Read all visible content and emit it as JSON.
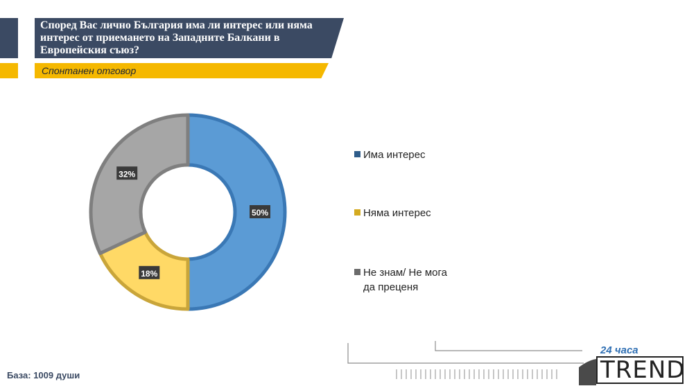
{
  "header": {
    "title": "Според Вас лично България има ли интерес или няма интерес от приемането на Западните Балкани в Европейския съюз?",
    "subtitle": "Спонтанен отговор"
  },
  "chart_data": {
    "type": "pie",
    "title": "Според Вас лично България има ли интерес или няма интерес от приемането на Западните Балкани в Европейския съюз?",
    "subtitle": "Спонтанен отговор",
    "style": "donut",
    "categories": [
      "Има интерес",
      "Няма интерес",
      "Не знам/ Не мога да преценя"
    ],
    "values": [
      50,
      18,
      32
    ],
    "labels": [
      "50%",
      "18%",
      "32%"
    ],
    "colors": [
      "#5b9bd5",
      "#ffd966",
      "#a6a6a6"
    ],
    "legend_colors": [
      "#2e5c8a",
      "#d4aa20",
      "#6b6b6b"
    ],
    "legend_position": "right"
  },
  "legend": {
    "items": [
      {
        "label_lines": [
          "Има интерес"
        ],
        "color": "#2e5c8a"
      },
      {
        "label_lines": [
          "Няма интерес"
        ],
        "color": "#d4aa20"
      },
      {
        "label_lines": [
          "Не знам/ Не мога",
          "да преценя"
        ],
        "color": "#6b6b6b"
      }
    ]
  },
  "footer": {
    "base_note": "База: 1009 души",
    "logo_top": "24 часа",
    "logo_bottom": "TREND"
  }
}
